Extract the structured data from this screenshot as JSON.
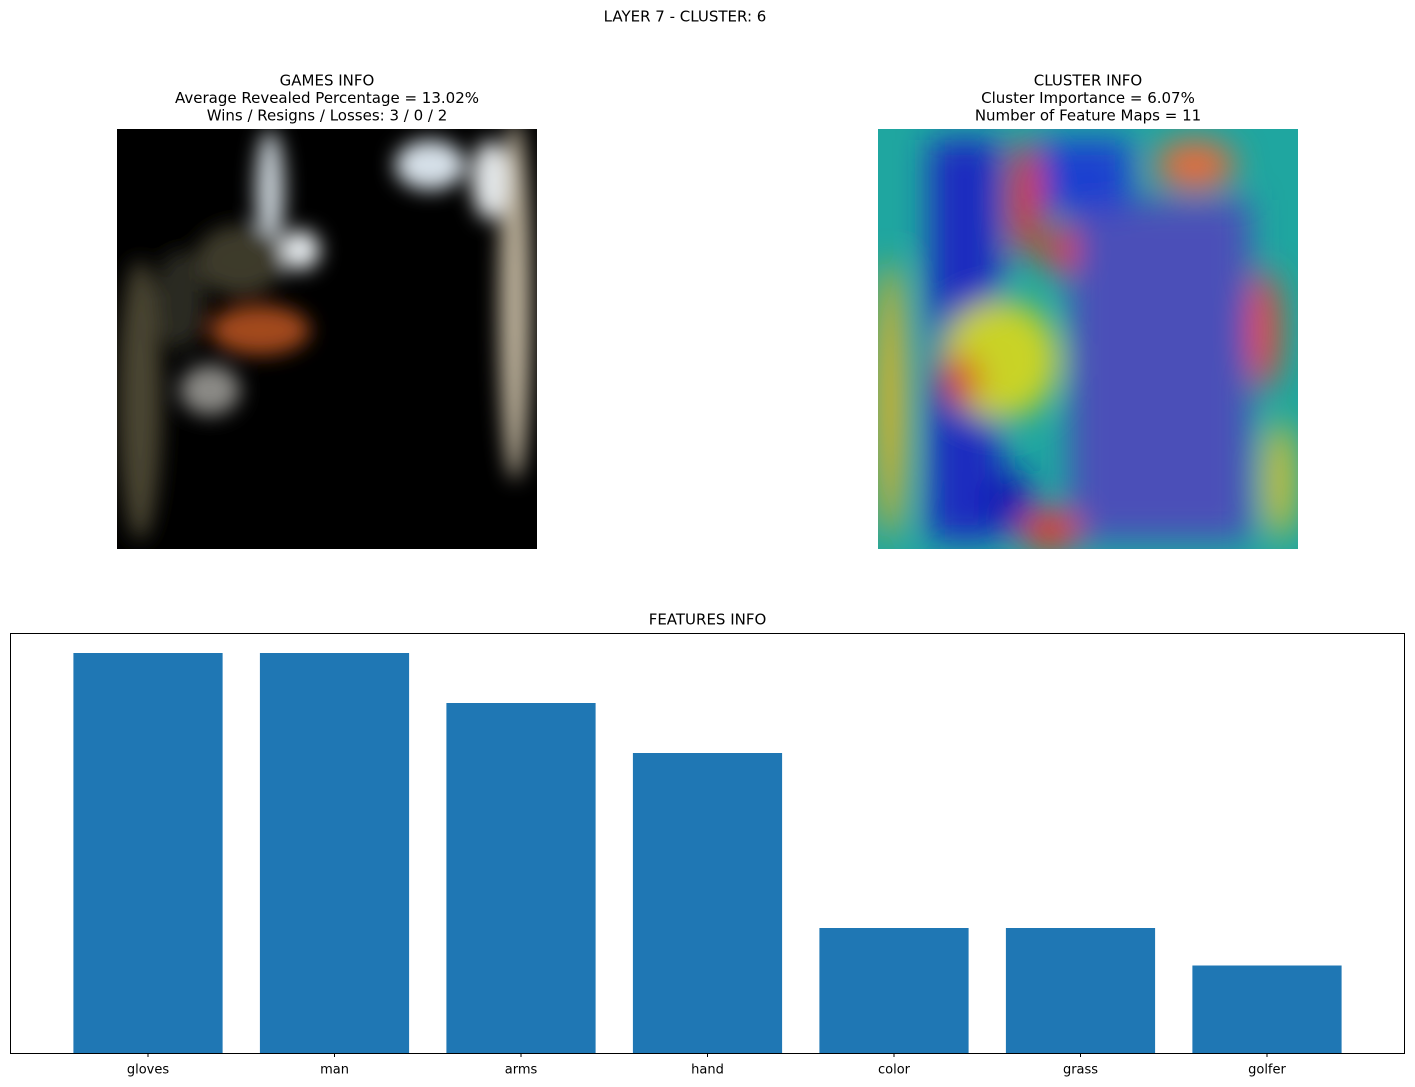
{
  "title": "LAYER 7 - CLUSTER: 6",
  "panels": [
    {
      "lines": [
        "GAMES INFO",
        "Average Revealed Percentage = 13.02%",
        "Wins / Resigns / Losses: 3 / 0 / 2"
      ]
    },
    {
      "lines": [
        "CLUSTER INFO",
        "Cluster Importance = 6.07%",
        "Number of Feature Maps = 11"
      ]
    }
  ],
  "chart_data": {
    "type": "bar",
    "title": "FEATURES INFO",
    "categories": [
      "gloves",
      "man",
      "arms",
      "hand",
      "color",
      "grass",
      "golfer"
    ],
    "values": [
      16,
      16,
      14,
      12,
      5,
      5,
      3.5
    ],
    "color": "#1f77b4",
    "ylim": [
      0,
      16.8
    ]
  }
}
